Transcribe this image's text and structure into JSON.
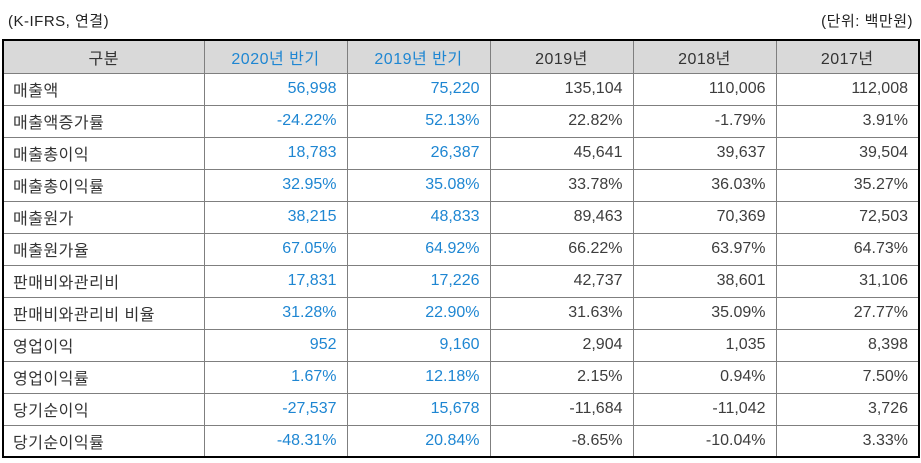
{
  "meta": {
    "left_note": "(K-IFRS, 연결)",
    "right_note": "(단위: 백만원)"
  },
  "colors": {
    "accent_blue": "#1e86d2",
    "header_bg": "#d9d9d9",
    "grid_line": "#7f7f7f",
    "outer_border": "#000000",
    "text_dark": "#333333"
  },
  "table": {
    "columns": [
      {
        "label": "구분",
        "accent": false
      },
      {
        "label": "2020년 반기",
        "accent": true
      },
      {
        "label": "2019년 반기",
        "accent": true
      },
      {
        "label": "2019년",
        "accent": false
      },
      {
        "label": "2018년",
        "accent": false
      },
      {
        "label": "2017년",
        "accent": false
      }
    ],
    "rows": [
      {
        "label": "매출액",
        "values": [
          "56,998",
          "75,220",
          "135,104",
          "110,006",
          "112,008"
        ]
      },
      {
        "label": "매출액증가률",
        "values": [
          "-24.22%",
          "52.13%",
          "22.82%",
          "-1.79%",
          "3.91%"
        ]
      },
      {
        "label": "매출총이익",
        "values": [
          "18,783",
          "26,387",
          "45,641",
          "39,637",
          "39,504"
        ]
      },
      {
        "label": "매출총이익률",
        "values": [
          "32.95%",
          "35.08%",
          "33.78%",
          "36.03%",
          "35.27%"
        ]
      },
      {
        "label": "매출원가",
        "values": [
          "38,215",
          "48,833",
          "89,463",
          "70,369",
          "72,503"
        ]
      },
      {
        "label": "매출원가율",
        "values": [
          "67.05%",
          "64.92%",
          "66.22%",
          "63.97%",
          "64.73%"
        ]
      },
      {
        "label": "판매비와관리비",
        "values": [
          "17,831",
          "17,226",
          "42,737",
          "38,601",
          "31,106"
        ]
      },
      {
        "label": "판매비와관리비 비율",
        "values": [
          "31.28%",
          "22.90%",
          "31.63%",
          "35.09%",
          "27.77%"
        ]
      },
      {
        "label": "영업이익",
        "values": [
          "952",
          "9,160",
          "2,904",
          "1,035",
          "8,398"
        ]
      },
      {
        "label": "영업이익률",
        "values": [
          "1.67%",
          "12.18%",
          "2.15%",
          "0.94%",
          "7.50%"
        ]
      },
      {
        "label": "당기순이익",
        "values": [
          "-27,537",
          "15,678",
          "-11,684",
          "-11,042",
          "3,726"
        ]
      },
      {
        "label": "당기순이익률",
        "values": [
          "-48.31%",
          "20.84%",
          "-8.65%",
          "-10.04%",
          "3.33%"
        ]
      }
    ]
  }
}
